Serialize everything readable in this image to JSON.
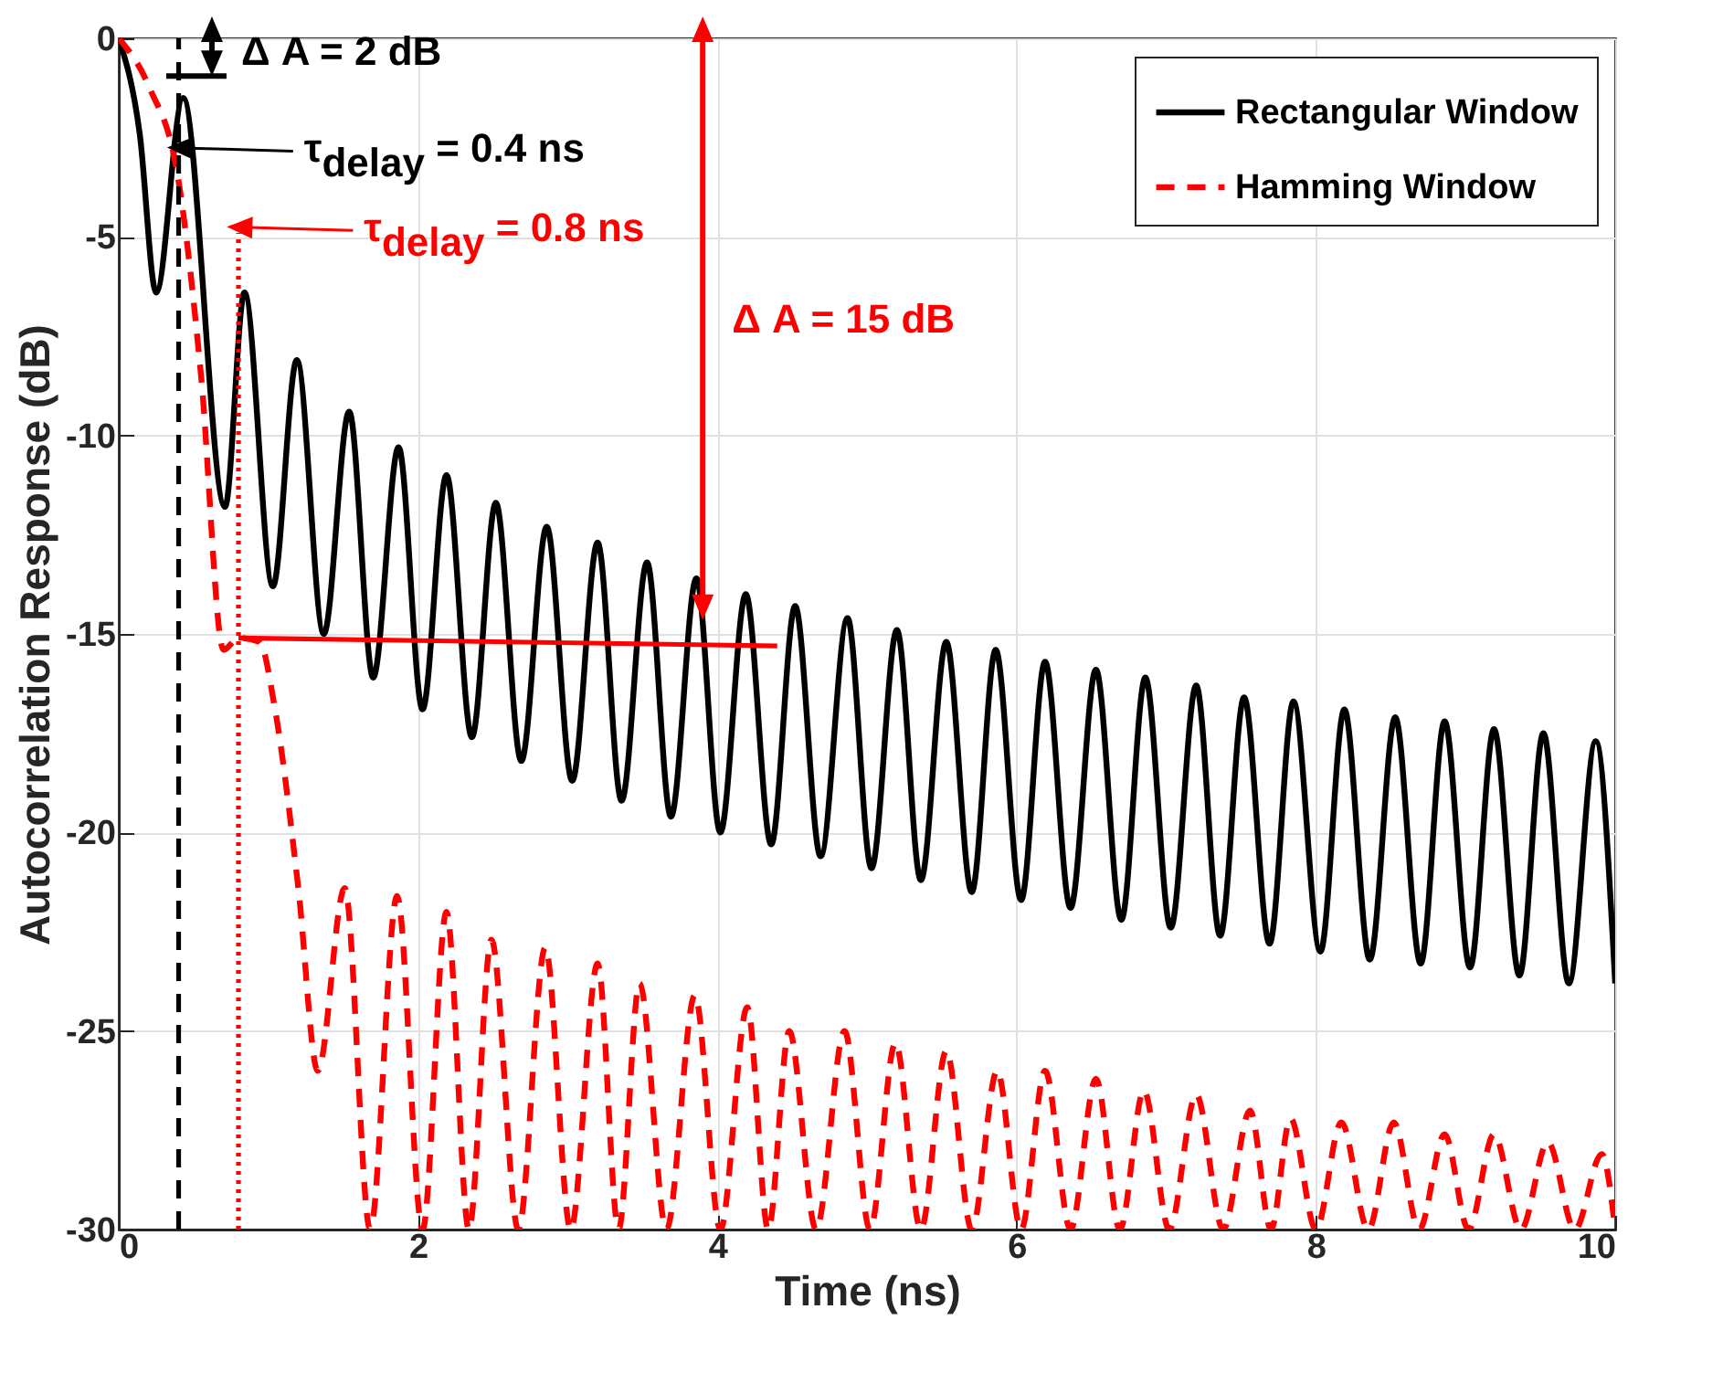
{
  "chart_data": {
    "type": "line",
    "xlabel": "Time (ns)",
    "ylabel": "Autocorrelation Response (dB)",
    "xlim": [
      0,
      10
    ],
    "xticks": [
      0,
      2,
      4,
      6,
      8,
      10
    ],
    "ylim": [
      -30,
      0
    ],
    "yticks": [
      -30,
      -25,
      -20,
      -15,
      -10,
      -5,
      0
    ],
    "grid": true,
    "legend": "top right",
    "series": [
      {
        "name": "Rectangular Window",
        "color": "#000000",
        "line_style": "solid",
        "x": [
          0,
          0.14,
          0.25,
          0.43,
          0.71,
          0.84,
          1.03,
          1.19,
          1.37,
          1.54,
          1.7,
          1.87,
          2.03,
          2.19,
          2.36,
          2.52,
          2.69,
          2.86,
          3.03,
          3.2,
          3.36,
          3.53,
          3.69,
          3.86,
          4.02,
          4.19,
          4.36,
          4.52,
          4.69,
          4.87,
          5.03,
          5.2,
          5.36,
          5.53,
          5.7,
          5.86,
          6.03,
          6.19,
          6.36,
          6.53,
          6.7,
          6.86,
          7.03,
          7.2,
          7.36,
          7.52,
          7.69,
          7.85,
          8.03,
          8.19,
          8.36,
          8.53,
          8.7,
          8.86,
          9.03,
          9.19,
          9.36,
          9.52,
          9.69,
          9.87,
          10
        ],
        "values": [
          0,
          -2.4,
          -6.4,
          -1.5,
          -11.8,
          -6.4,
          -13.8,
          -8.1,
          -15.0,
          -9.4,
          -16.1,
          -10.3,
          -16.9,
          -11.0,
          -17.6,
          -11.7,
          -18.2,
          -12.3,
          -18.7,
          -12.7,
          -19.2,
          -13.2,
          -19.6,
          -13.6,
          -20.0,
          -14.0,
          -20.3,
          -14.3,
          -20.6,
          -14.6,
          -20.9,
          -14.9,
          -21.2,
          -15.2,
          -21.5,
          -15.4,
          -21.7,
          -15.7,
          -21.9,
          -15.9,
          -22.2,
          -16.1,
          -22.4,
          -16.3,
          -22.6,
          -16.6,
          -22.8,
          -16.7,
          -23.0,
          -16.9,
          -23.2,
          -17.1,
          -23.3,
          -17.2,
          -23.4,
          -17.4,
          -23.6,
          -17.5,
          -23.8,
          -17.7,
          -23.8
        ]
      },
      {
        "name": "Hamming Window",
        "color": "#ff0000",
        "line_style": "dashed",
        "x": [
          0,
          0.2,
          0.4,
          0.55,
          0.7,
          0.8,
          0.94,
          1.04,
          1.2,
          1.33,
          1.51,
          1.68,
          1.86,
          2.03,
          2.19,
          2.34,
          2.49,
          2.67,
          2.85,
          3.02,
          3.2,
          3.34,
          3.48,
          3.66,
          3.85,
          4.02,
          4.2,
          4.34,
          4.48,
          4.66,
          4.85,
          5.02,
          5.19,
          5.36,
          5.53,
          5.7,
          5.87,
          6.03,
          6.19,
          6.36,
          6.53,
          6.69,
          6.85,
          7.02,
          7.2,
          7.38,
          7.56,
          7.7,
          7.83,
          8.0,
          8.17,
          8.35,
          8.52,
          8.69,
          8.86,
          9.02,
          9.19,
          9.37,
          9.55,
          9.73,
          9.91,
          10
        ],
        "values": [
          0,
          -1.2,
          -3.6,
          -8.5,
          -15.4,
          -15.1,
          -15.2,
          -16.8,
          -21.4,
          -26.0,
          -21.4,
          -30,
          -21.6,
          -30,
          -22.0,
          -30,
          -22.7,
          -30,
          -22.9,
          -30,
          -23.3,
          -30,
          -23.8,
          -30,
          -24.1,
          -30,
          -24.4,
          -30,
          -25.0,
          -30,
          -25.0,
          -30,
          -25.3,
          -30,
          -25.5,
          -30,
          -26.0,
          -30,
          -26.0,
          -30,
          -26.2,
          -30,
          -26.5,
          -30,
          -26.6,
          -30,
          -27.0,
          -30,
          -27.2,
          -30,
          -27.3,
          -30,
          -27.3,
          -30,
          -27.6,
          -30,
          -27.6,
          -30,
          -27.8,
          -30,
          -28.1,
          -30
        ]
      },
      {
        "color": "#000000",
        "line_style": "dashed",
        "x": [
          0.4,
          0.4
        ],
        "values": [
          -30,
          0
        ]
      },
      {
        "color": "#ff0000",
        "line_style": "dotted",
        "x": [
          0.8,
          0.8
        ],
        "values": [
          -30,
          -4.9
        ]
      },
      {
        "color": "#ff0000",
        "line_style": "solid",
        "x": [
          0.8,
          4.4
        ],
        "values": [
          -15.1,
          -15.3
        ]
      }
    ],
    "annotations": [
      "Δ A = 2 dB",
      "τ$_{delay}$ = 0.4 ns",
      "τ$_{delay}$ = 0.8 ns",
      "Δ A = 15 dB"
    ]
  }
}
